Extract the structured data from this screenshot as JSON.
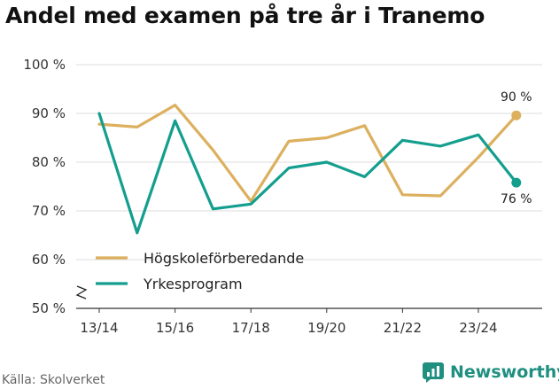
{
  "title": "Andel med examen på tre år i Tranemo",
  "source": "Källa: Skolverket",
  "brand": "Newsworthy",
  "colors": {
    "series1": "#dcb05e",
    "series2": "#139e8e",
    "grid": "#dddddd",
    "brand": "#1f8f80"
  },
  "chart_data": {
    "type": "line",
    "title": "Andel med examen på tre år i Tranemo",
    "xlabel": "",
    "ylabel": "",
    "x": [
      "13/14",
      "14/15",
      "15/16",
      "16/17",
      "17/18",
      "18/19",
      "19/20",
      "20/21",
      "21/22",
      "22/23",
      "23/24",
      "24/25"
    ],
    "x_tick_labels": [
      "13/14",
      "15/16",
      "17/18",
      "19/20",
      "21/22",
      "23/24"
    ],
    "y_tick_labels": [
      "50 %",
      "60 %",
      "70 %",
      "80 %",
      "90 %",
      "100 %"
    ],
    "y_ticks": [
      50,
      60,
      70,
      80,
      90,
      100
    ],
    "ylim": [
      50,
      100
    ],
    "y_axis_break": true,
    "grid": true,
    "legend_position": "bottom-left",
    "series": [
      {
        "name": "Högskoleförberedande",
        "color": "#dcb05e",
        "values": [
          87.8,
          87.2,
          91.7,
          82.5,
          72.0,
          84.3,
          85.0,
          87.5,
          73.3,
          73.1,
          81.0,
          89.6
        ],
        "end_label": "90 %"
      },
      {
        "name": "Yrkesprogram",
        "color": "#139e8e",
        "values": [
          90.0,
          65.5,
          88.5,
          70.4,
          71.4,
          78.8,
          80.0,
          77.0,
          84.5,
          83.3,
          85.6,
          75.8
        ],
        "end_label": "76 %"
      }
    ]
  }
}
